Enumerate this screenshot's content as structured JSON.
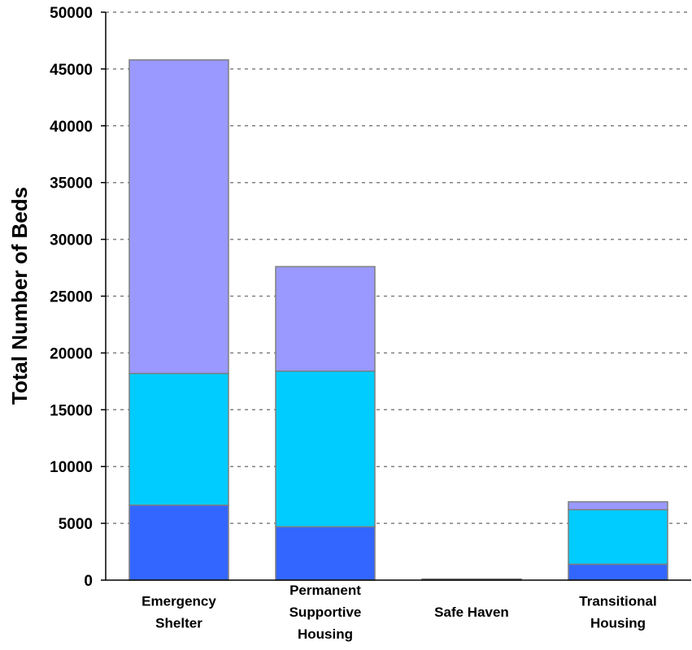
{
  "chart_data": {
    "type": "bar",
    "stacked": true,
    "categories": [
      [
        "Emergency",
        "Shelter"
      ],
      [
        "Permanent",
        "Supportive",
        "Housing"
      ],
      [
        "Safe Haven"
      ],
      [
        "Transitional",
        "Housing"
      ]
    ],
    "series": [
      {
        "color": "#3366ff",
        "values": [
          6600,
          4700,
          100,
          1400
        ]
      },
      {
        "color": "#00ccff",
        "values": [
          11600,
          13700,
          0,
          4800
        ]
      },
      {
        "color": "#9999ff",
        "values": [
          27600,
          9200,
          0,
          700
        ]
      }
    ],
    "ylabel": "Total Number of Beds",
    "ylim": [
      0,
      50000
    ],
    "yticks": [
      0,
      5000,
      10000,
      15000,
      20000,
      25000,
      30000,
      35000,
      40000,
      45000,
      50000
    ],
    "grid": true
  }
}
